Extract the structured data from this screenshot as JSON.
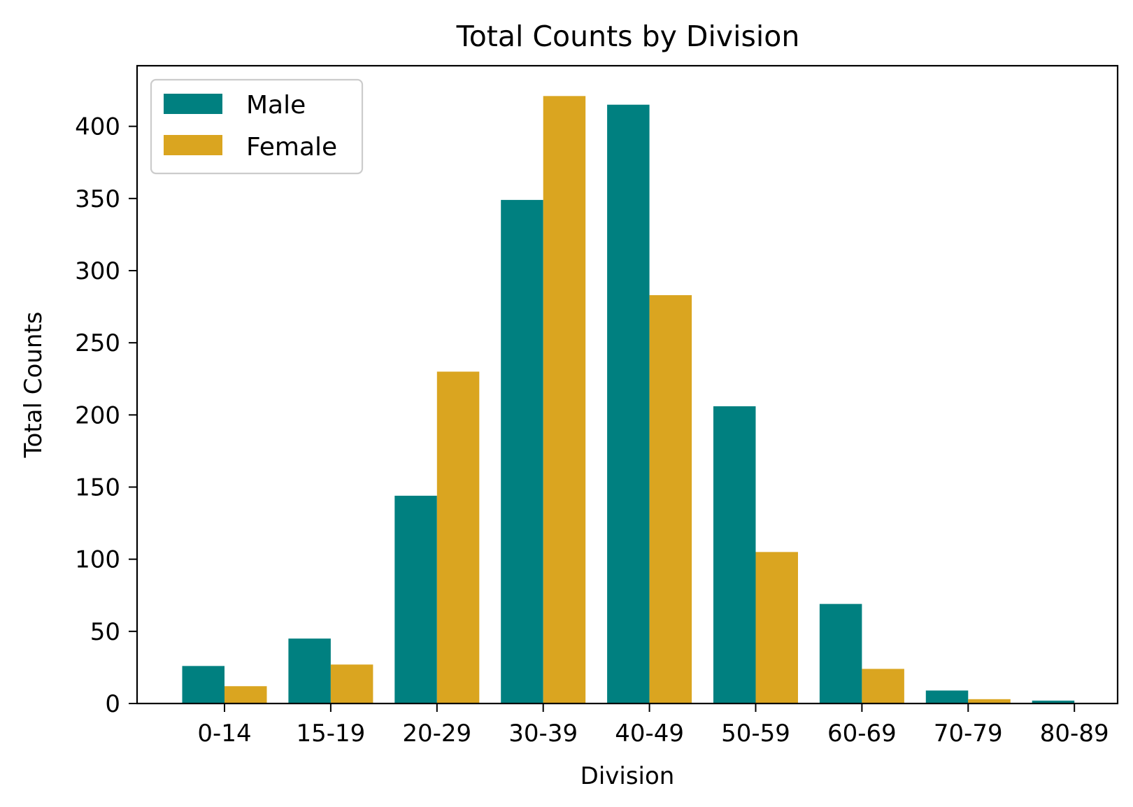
{
  "chart_data": {
    "type": "bar",
    "title": "Total Counts by Division",
    "xlabel": "Division",
    "ylabel": "Total Counts",
    "categories": [
      "0-14",
      "15-19",
      "20-29",
      "30-39",
      "40-49",
      "50-59",
      "60-69",
      "70-79",
      "80-89"
    ],
    "series": [
      {
        "name": "Male",
        "color": "#008080",
        "values": [
          26,
          45,
          144,
          349,
          415,
          206,
          69,
          9,
          2
        ]
      },
      {
        "name": "Female",
        "color": "#DAA520",
        "values": [
          12,
          27,
          230,
          421,
          283,
          105,
          24,
          3,
          0
        ]
      }
    ],
    "ylim": [
      0,
      442
    ],
    "yticks": [
      0,
      50,
      100,
      150,
      200,
      250,
      300,
      350,
      400
    ],
    "grid": false,
    "legend_position": "top-left"
  }
}
